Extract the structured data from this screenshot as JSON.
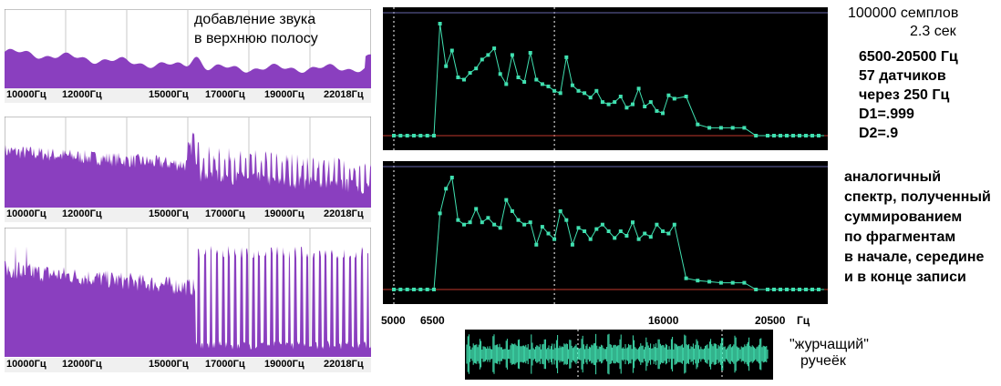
{
  "left_spectra": {
    "tick_labels": [
      "10000Гц",
      "12000Гц",
      "15000Гц",
      "17000Гц",
      "19000Гц",
      "22018Гц"
    ],
    "annotation_line1": "добавление звука",
    "annotation_line2": "в верхнюю полосу"
  },
  "right_notes": {
    "samples": "100000 семплов",
    "duration": "2.3 сек",
    "range": "6500-20500 Гц",
    "sensors": "57 датчиков",
    "step": "через 250 Гц",
    "d1": "D1=.999",
    "d2": "D2=.9"
  },
  "middle_notes": [
    "аналогичный",
    "спектр, полученный",
    "суммированием",
    "по фрагментам",
    "в начале, середине",
    "и в конце  записи"
  ],
  "freq_axis": {
    "labels": [
      "5000",
      "6500",
      "16000",
      "20500"
    ],
    "unit": "Гц"
  },
  "waveform_caption": [
    "\"журчащий\"",
    "ручеёк"
  ],
  "colors": {
    "spectrum_fill": "#8a3fbf",
    "plot_bg": "#000000",
    "series_line": "#40e0b0",
    "baseline": "#c0392b",
    "grid": "#c0c0c0"
  },
  "chart_data": [
    {
      "type": "line",
      "title": "",
      "xlabel": "Гц",
      "ylabel": "",
      "xlim": [
        5000,
        20500
      ],
      "grid": true,
      "x": [
        5000,
        5250,
        5500,
        5750,
        6000,
        6250,
        6500,
        6750,
        7000,
        7250,
        7500,
        7750,
        8000,
        8250,
        8500,
        8750,
        9000,
        9250,
        9500,
        9750,
        10000,
        10250,
        10500,
        10750,
        11000,
        11250,
        11500,
        11750,
        12000,
        12250,
        12500,
        12750,
        13000,
        13250,
        13500,
        13750,
        14000,
        14250,
        14500,
        14750,
        15000,
        15250,
        15500,
        15750,
        16000,
        16250,
        16500,
        17000,
        17500,
        18000,
        18500,
        19000,
        19500,
        20000,
        20500
      ],
      "values": [
        0.0,
        0.0,
        0.0,
        0.0,
        0.0,
        0.0,
        0.0,
        1.0,
        0.62,
        0.76,
        0.52,
        0.5,
        0.56,
        0.6,
        0.68,
        0.72,
        0.78,
        0.55,
        0.46,
        0.72,
        0.52,
        0.48,
        0.74,
        0.5,
        0.46,
        0.44,
        0.4,
        0.38,
        0.7,
        0.45,
        0.4,
        0.38,
        0.34,
        0.4,
        0.3,
        0.28,
        0.3,
        0.35,
        0.25,
        0.28,
        0.42,
        0.26,
        0.3,
        0.22,
        0.2,
        0.36,
        0.33,
        0.35,
        0.1,
        0.07,
        0.07,
        0.07,
        0.07,
        0.0,
        0.0
      ]
    },
    {
      "type": "line",
      "title": "",
      "xlabel": "Гц",
      "ylabel": "",
      "xlim": [
        5000,
        20500
      ],
      "grid": true,
      "x": [
        5000,
        5250,
        5500,
        5750,
        6000,
        6250,
        6500,
        6750,
        7000,
        7250,
        7500,
        7750,
        8000,
        8250,
        8500,
        8750,
        9000,
        9250,
        9500,
        9750,
        10000,
        10250,
        10500,
        10750,
        11000,
        11250,
        11500,
        11750,
        12000,
        12250,
        12500,
        12750,
        13000,
        13250,
        13500,
        13750,
        14000,
        14250,
        14500,
        14750,
        15000,
        15250,
        15500,
        15750,
        16000,
        16250,
        16500,
        17000,
        17500,
        18000,
        18500,
        19000,
        19500,
        20000,
        20500
      ],
      "values": [
        0.0,
        0.0,
        0.0,
        0.0,
        0.0,
        0.0,
        0.0,
        0.68,
        0.9,
        1.0,
        0.62,
        0.58,
        0.6,
        0.72,
        0.6,
        0.64,
        0.58,
        0.55,
        0.8,
        0.7,
        0.62,
        0.58,
        0.6,
        0.4,
        0.56,
        0.5,
        0.45,
        0.7,
        0.62,
        0.4,
        0.55,
        0.52,
        0.45,
        0.54,
        0.58,
        0.52,
        0.46,
        0.52,
        0.48,
        0.6,
        0.45,
        0.5,
        0.47,
        0.58,
        0.52,
        0.5,
        0.58,
        0.1,
        0.08,
        0.07,
        0.06,
        0.06,
        0.06,
        0.0,
        0.0
      ]
    }
  ]
}
